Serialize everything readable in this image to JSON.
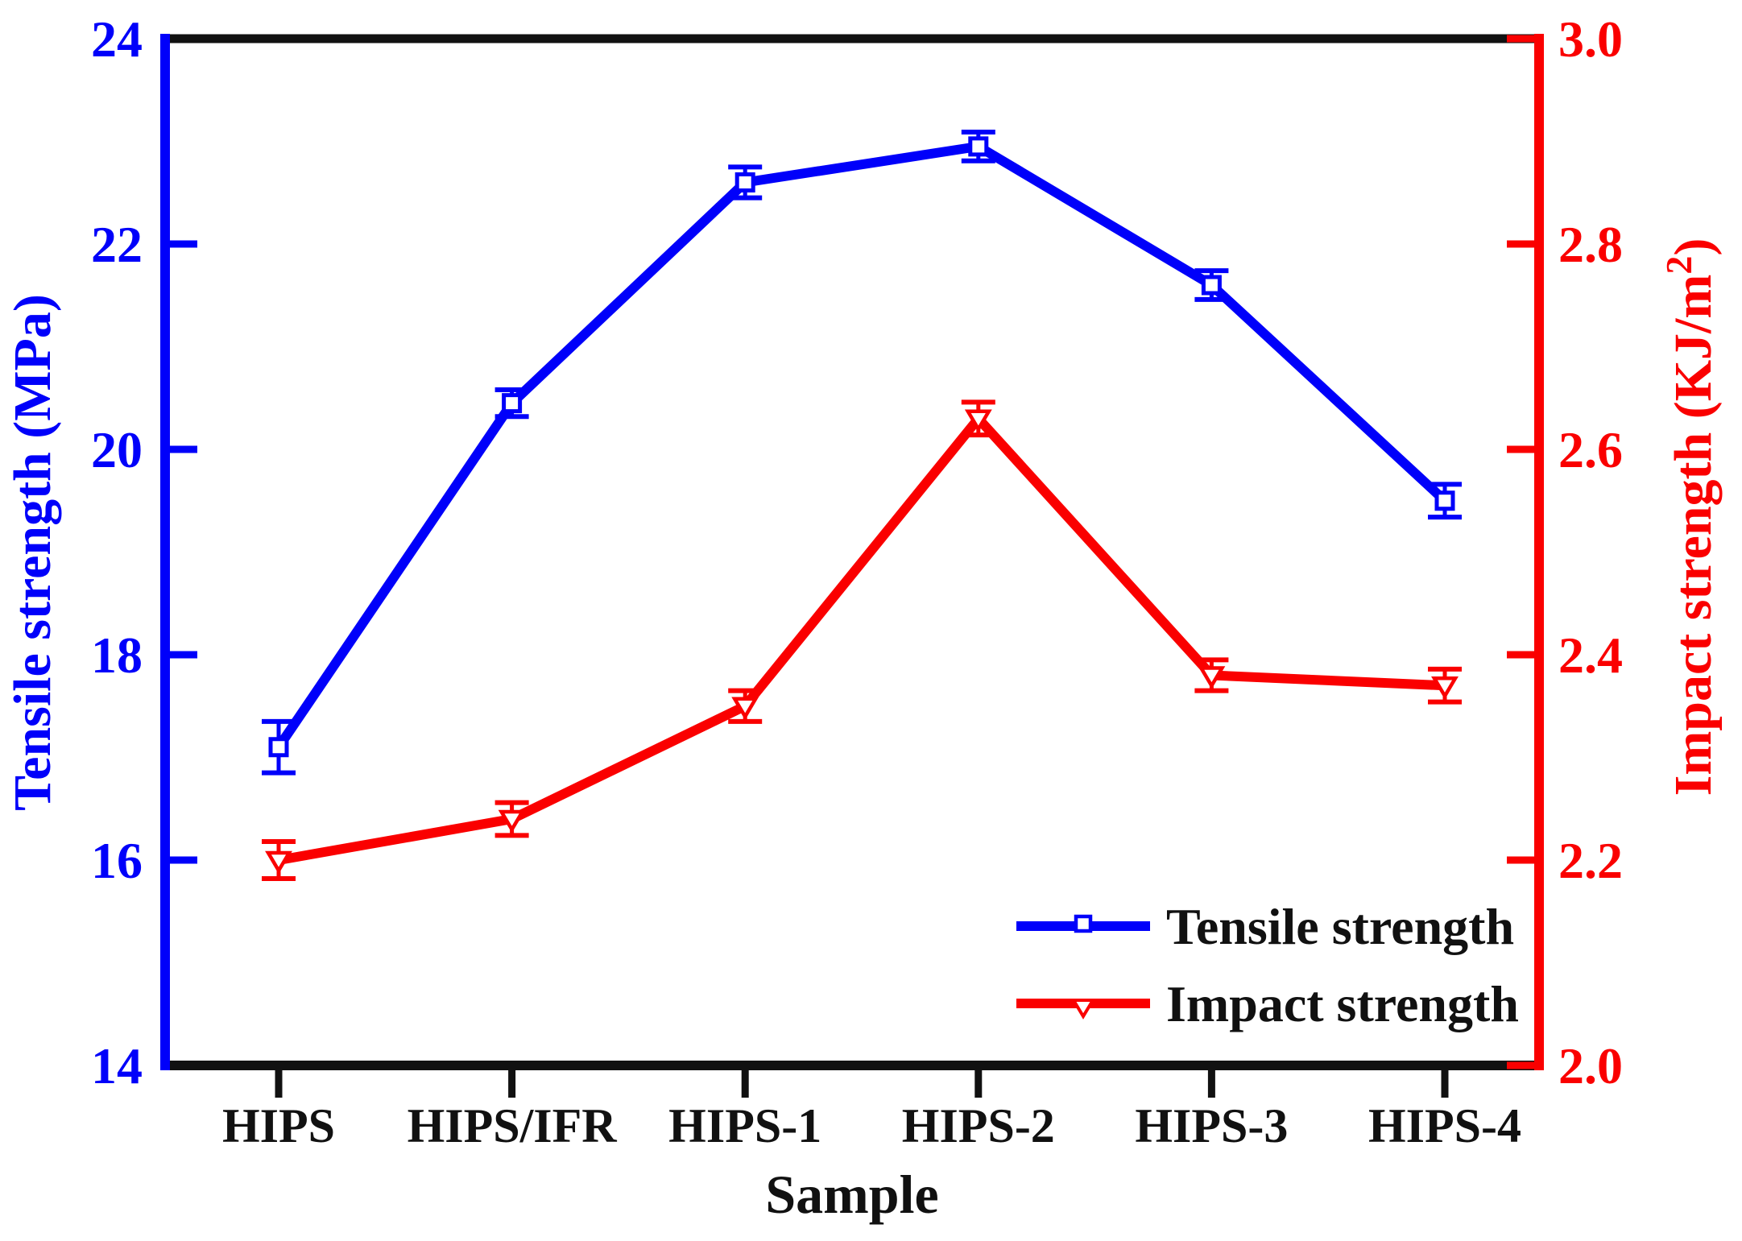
{
  "chart_data": {
    "type": "line",
    "title": "",
    "xlabel": "Sample",
    "categories": [
      "HIPS",
      "HIPS/IFR",
      "HIPS-1",
      "HIPS-2",
      "HIPS-3",
      "HIPS-4"
    ],
    "left_axis": {
      "label": "Tensile strength (MPa)",
      "color": "#0000fa",
      "min": 14,
      "max": 24,
      "ticks": [
        "14",
        "16",
        "18",
        "20",
        "22",
        "24"
      ]
    },
    "right_axis": {
      "label": "Impact strength (KJ/m2)",
      "label_main": "Impact strength (KJ/m",
      "label_sup": "2",
      "label_close": ")",
      "color": "#fa0000",
      "min": 2.0,
      "max": 3.0,
      "ticks": [
        "2.0",
        "2.2",
        "2.4",
        "2.6",
        "2.8",
        "3.0"
      ]
    },
    "series": [
      {
        "name": "Tensile strength",
        "axis": "left",
        "color": "#0000fa",
        "marker": "open-square",
        "values": [
          17.1,
          20.45,
          22.6,
          22.95,
          21.6,
          19.5
        ],
        "errors": [
          0.25,
          0.13,
          0.15,
          0.14,
          0.14,
          0.16
        ]
      },
      {
        "name": "Impact strength",
        "axis": "right",
        "color": "#fa0000",
        "marker": "open-triangle-down",
        "values": [
          2.2,
          2.24,
          2.35,
          2.63,
          2.38,
          2.37
        ],
        "errors": [
          0.018,
          0.016,
          0.015,
          0.016,
          0.015,
          0.016
        ]
      }
    ],
    "legend": {
      "position": "lower-right",
      "entries": [
        "Tensile strength",
        "Impact strength"
      ]
    },
    "grid": false,
    "spine_colors": {
      "top": "#111111",
      "bottom": "#111111",
      "left": "#0000fa",
      "right": "#fa0000"
    },
    "background": "#ffffff"
  }
}
